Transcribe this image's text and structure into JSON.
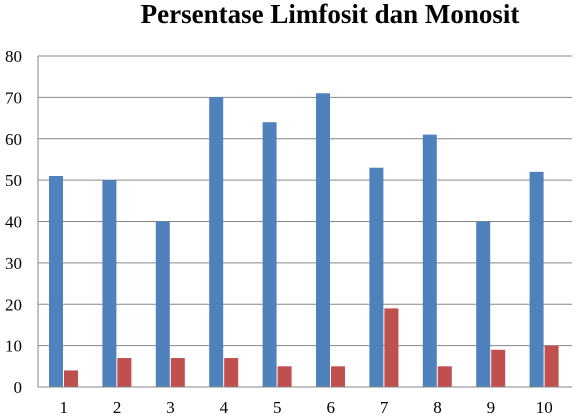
{
  "chart_data": {
    "type": "bar",
    "title": "Persentase Limfosit dan Monosit",
    "xlabel": "",
    "ylabel": "",
    "categories": [
      "1",
      "2",
      "3",
      "4",
      "5",
      "6",
      "7",
      "8",
      "9",
      "10"
    ],
    "series": [
      {
        "values": [
          51,
          50,
          40,
          70,
          64,
          71,
          53,
          61,
          40,
          52
        ],
        "color": "#4f81bd"
      },
      {
        "values": [
          4,
          7,
          7,
          7,
          5,
          5,
          19,
          5,
          9,
          10
        ],
        "color": "#c0504d"
      }
    ],
    "ylim": [
      0,
      80
    ],
    "yticks": [
      "0",
      "10",
      "20",
      "30",
      "40",
      "50",
      "60",
      "70",
      "80"
    ],
    "grid": true,
    "legend": "none"
  }
}
